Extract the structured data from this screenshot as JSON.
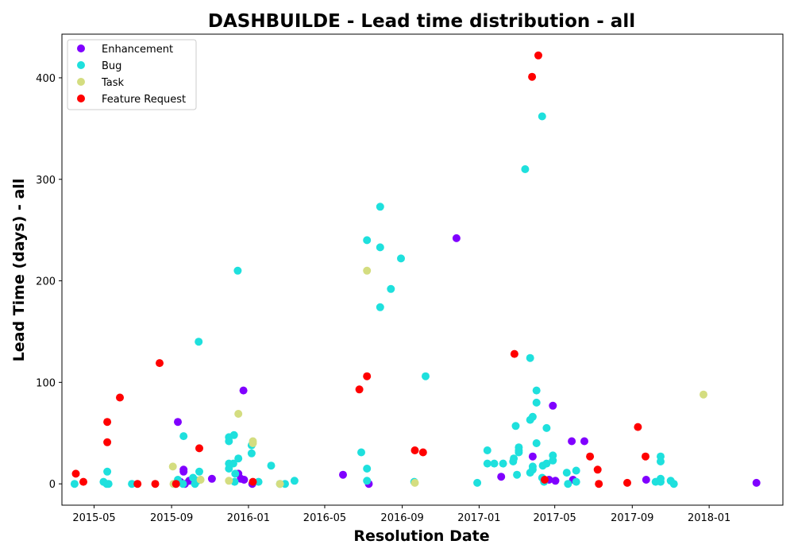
{
  "chart_data": {
    "type": "scatter",
    "title": "DASHBUILDE - Lead time distribution - all",
    "xlabel": "Resolution Date",
    "ylabel": "Lead Time (days) - all",
    "xlim": [
      "2015-03-11",
      "2018-04-28"
    ],
    "ylim": [
      -21,
      443
    ],
    "x_ticks": [
      "2015-05",
      "2015-09",
      "2016-01",
      "2016-05",
      "2016-09",
      "2017-01",
      "2017-05",
      "2017-09",
      "2018-01"
    ],
    "y_ticks": [
      0,
      100,
      200,
      300,
      400
    ],
    "legend_position": "top-left",
    "grid": false,
    "series": [
      {
        "name": "Enhancement",
        "color": "#8000ff",
        "points": [
          [
            "2015-09-11",
            61
          ],
          [
            "2015-09-15",
            2
          ],
          [
            "2015-09-20",
            14
          ],
          [
            "2015-09-20",
            12
          ],
          [
            "2015-09-22",
            0
          ],
          [
            "2015-09-29",
            3
          ],
          [
            "2015-11-04",
            5
          ],
          [
            "2015-12-16",
            10
          ],
          [
            "2015-12-20",
            5
          ],
          [
            "2015-12-24",
            92
          ],
          [
            "2015-12-25",
            4
          ],
          [
            "2016-01-07",
            0
          ],
          [
            "2016-05-30",
            9
          ],
          [
            "2016-07-10",
            0
          ],
          [
            "2016-11-26",
            242
          ],
          [
            "2017-02-05",
            7
          ],
          [
            "2017-03-27",
            27
          ],
          [
            "2017-04-22",
            4
          ],
          [
            "2017-04-28",
            77
          ],
          [
            "2017-05-02",
            3
          ],
          [
            "2017-05-28",
            42
          ],
          [
            "2017-05-30",
            4
          ],
          [
            "2017-06-17",
            42
          ],
          [
            "2017-09-23",
            4
          ],
          [
            "2018-03-17",
            1
          ]
        ]
      },
      {
        "name": "Bug",
        "color": "#1ee0dd",
        "points": [
          [
            "2015-03-31",
            0
          ],
          [
            "2015-05-16",
            2
          ],
          [
            "2015-05-21",
            0
          ],
          [
            "2015-05-22",
            12
          ],
          [
            "2015-05-24",
            0
          ],
          [
            "2015-06-30",
            0
          ],
          [
            "2015-09-07",
            0
          ],
          [
            "2015-09-11",
            4
          ],
          [
            "2015-09-19",
            0
          ],
          [
            "2015-09-20",
            47
          ],
          [
            "2015-10-05",
            6
          ],
          [
            "2015-10-08",
            0
          ],
          [
            "2015-10-12",
            3
          ],
          [
            "2015-10-14",
            140
          ],
          [
            "2015-10-15",
            12
          ],
          [
            "2015-12-01",
            42
          ],
          [
            "2015-12-01",
            15
          ],
          [
            "2015-12-01",
            46
          ],
          [
            "2015-12-01",
            20
          ],
          [
            "2015-12-08",
            20
          ],
          [
            "2015-12-09",
            48
          ],
          [
            "2015-12-10",
            2
          ],
          [
            "2015-12-11",
            10
          ],
          [
            "2015-12-15",
            210
          ],
          [
            "2015-12-16",
            25
          ],
          [
            "2016-01-06",
            30
          ],
          [
            "2016-01-06",
            38
          ],
          [
            "2016-01-17",
            2
          ],
          [
            "2016-02-06",
            18
          ],
          [
            "2016-02-20",
            0
          ],
          [
            "2016-02-28",
            0
          ],
          [
            "2016-03-14",
            3
          ],
          [
            "2016-06-28",
            31
          ],
          [
            "2016-07-07",
            240
          ],
          [
            "2016-07-07",
            15
          ],
          [
            "2016-07-07",
            3
          ],
          [
            "2016-07-28",
            273
          ],
          [
            "2016-07-28",
            233
          ],
          [
            "2016-07-28",
            174
          ],
          [
            "2016-08-14",
            192
          ],
          [
            "2016-08-30",
            222
          ],
          [
            "2016-09-20",
            2
          ],
          [
            "2016-10-08",
            106
          ],
          [
            "2016-12-29",
            1
          ],
          [
            "2017-01-14",
            20
          ],
          [
            "2017-01-14",
            33
          ],
          [
            "2017-01-25",
            20
          ],
          [
            "2017-02-08",
            20
          ],
          [
            "2017-02-24",
            22
          ],
          [
            "2017-02-25",
            25
          ],
          [
            "2017-02-28",
            57
          ],
          [
            "2017-03-02",
            9
          ],
          [
            "2017-03-05",
            33
          ],
          [
            "2017-03-05",
            31
          ],
          [
            "2017-03-05",
            36
          ],
          [
            "2017-03-15",
            310
          ],
          [
            "2017-03-23",
            124
          ],
          [
            "2017-03-23",
            63
          ],
          [
            "2017-03-23",
            11
          ],
          [
            "2017-03-27",
            66
          ],
          [
            "2017-03-27",
            17
          ],
          [
            "2017-03-27",
            14
          ],
          [
            "2017-04-02",
            92
          ],
          [
            "2017-04-02",
            40
          ],
          [
            "2017-04-02",
            80
          ],
          [
            "2017-04-11",
            362
          ],
          [
            "2017-04-11",
            6
          ],
          [
            "2017-04-12",
            18
          ],
          [
            "2017-04-14",
            2
          ],
          [
            "2017-04-18",
            55
          ],
          [
            "2017-04-18",
            20
          ],
          [
            "2017-04-28",
            28
          ],
          [
            "2017-04-28",
            23
          ],
          [
            "2017-05-20",
            11
          ],
          [
            "2017-05-22",
            0
          ],
          [
            "2017-06-04",
            13
          ],
          [
            "2017-06-04",
            2
          ],
          [
            "2017-10-08",
            2
          ],
          [
            "2017-10-16",
            22
          ],
          [
            "2017-10-16",
            27
          ],
          [
            "2017-10-16",
            5
          ],
          [
            "2017-10-16",
            2
          ],
          [
            "2017-11-01",
            3
          ],
          [
            "2017-11-06",
            0
          ]
        ]
      },
      {
        "name": "Task",
        "color": "#d4dd80",
        "points": [
          [
            "2015-09-03",
            17
          ],
          [
            "2015-09-04",
            0
          ],
          [
            "2015-10-17",
            4
          ],
          [
            "2015-12-01",
            3
          ],
          [
            "2015-12-16",
            69
          ],
          [
            "2016-01-08",
            40
          ],
          [
            "2016-01-08",
            42
          ],
          [
            "2016-02-20",
            0
          ],
          [
            "2016-07-07",
            210
          ],
          [
            "2016-09-21",
            1
          ],
          [
            "2017-12-23",
            88
          ]
        ]
      },
      {
        "name": "Feature Request",
        "color": "#ff0000",
        "points": [
          [
            "2015-04-02",
            10
          ],
          [
            "2015-04-14",
            2
          ],
          [
            "2015-05-22",
            61
          ],
          [
            "2015-05-22",
            41
          ],
          [
            "2015-06-11",
            85
          ],
          [
            "2015-07-09",
            0
          ],
          [
            "2015-08-06",
            0
          ],
          [
            "2015-08-13",
            119
          ],
          [
            "2015-09-08",
            0
          ],
          [
            "2015-10-15",
            35
          ],
          [
            "2016-01-08",
            2
          ],
          [
            "2016-06-25",
            93
          ],
          [
            "2016-07-07",
            106
          ],
          [
            "2016-09-21",
            33
          ],
          [
            "2016-10-04",
            31
          ],
          [
            "2017-02-26",
            128
          ],
          [
            "2017-03-26",
            401
          ],
          [
            "2017-04-05",
            422
          ],
          [
            "2017-04-15",
            4
          ],
          [
            "2017-06-26",
            27
          ],
          [
            "2017-07-08",
            14
          ],
          [
            "2017-07-10",
            0
          ],
          [
            "2017-08-24",
            1
          ],
          [
            "2017-09-10",
            56
          ],
          [
            "2017-09-22",
            27
          ]
        ]
      }
    ]
  }
}
